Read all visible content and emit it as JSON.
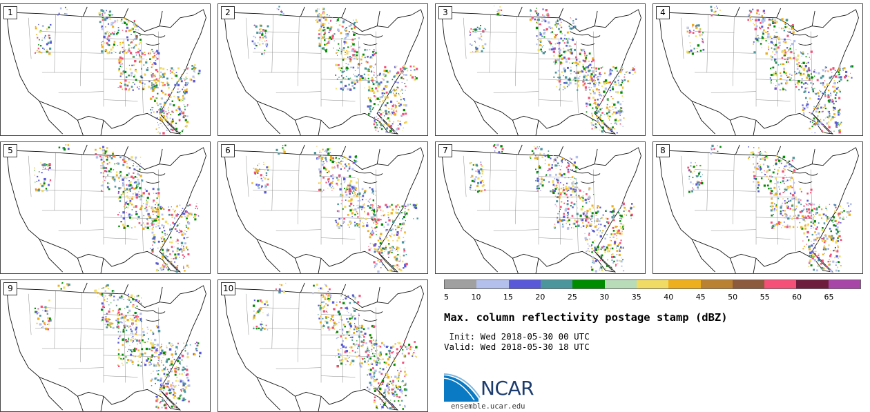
{
  "panels": [
    {
      "label": "1"
    },
    {
      "label": "2"
    },
    {
      "label": "3"
    },
    {
      "label": "4"
    },
    {
      "label": "5"
    },
    {
      "label": "6"
    },
    {
      "label": "7"
    },
    {
      "label": "8"
    },
    {
      "label": "9"
    },
    {
      "label": "10"
    }
  ],
  "colorbar": {
    "ticks": [
      "5",
      "10",
      "15",
      "20",
      "25",
      "30",
      "35",
      "40",
      "45",
      "50",
      "55",
      "60",
      "65"
    ],
    "colors": [
      "#a0a0a0",
      "#b4c0ec",
      "#5a5ad8",
      "#4b969c",
      "#008c00",
      "#b8dcb8",
      "#f0dc64",
      "#eeaf1e",
      "#b98232",
      "#8c5a3c",
      "#f55078",
      "#6e1e3c",
      "#a846a8"
    ]
  },
  "title": "Max. column reflectivity postage stamp (dBZ)",
  "init": " Init: Wed 2018-05-30 00 UTC",
  "valid": "Valid: Wed 2018-05-30 18 UTC",
  "logo": {
    "text": "NCAR",
    "url": "ensemble.ucar.edu",
    "color": "#0a7ac4"
  }
}
